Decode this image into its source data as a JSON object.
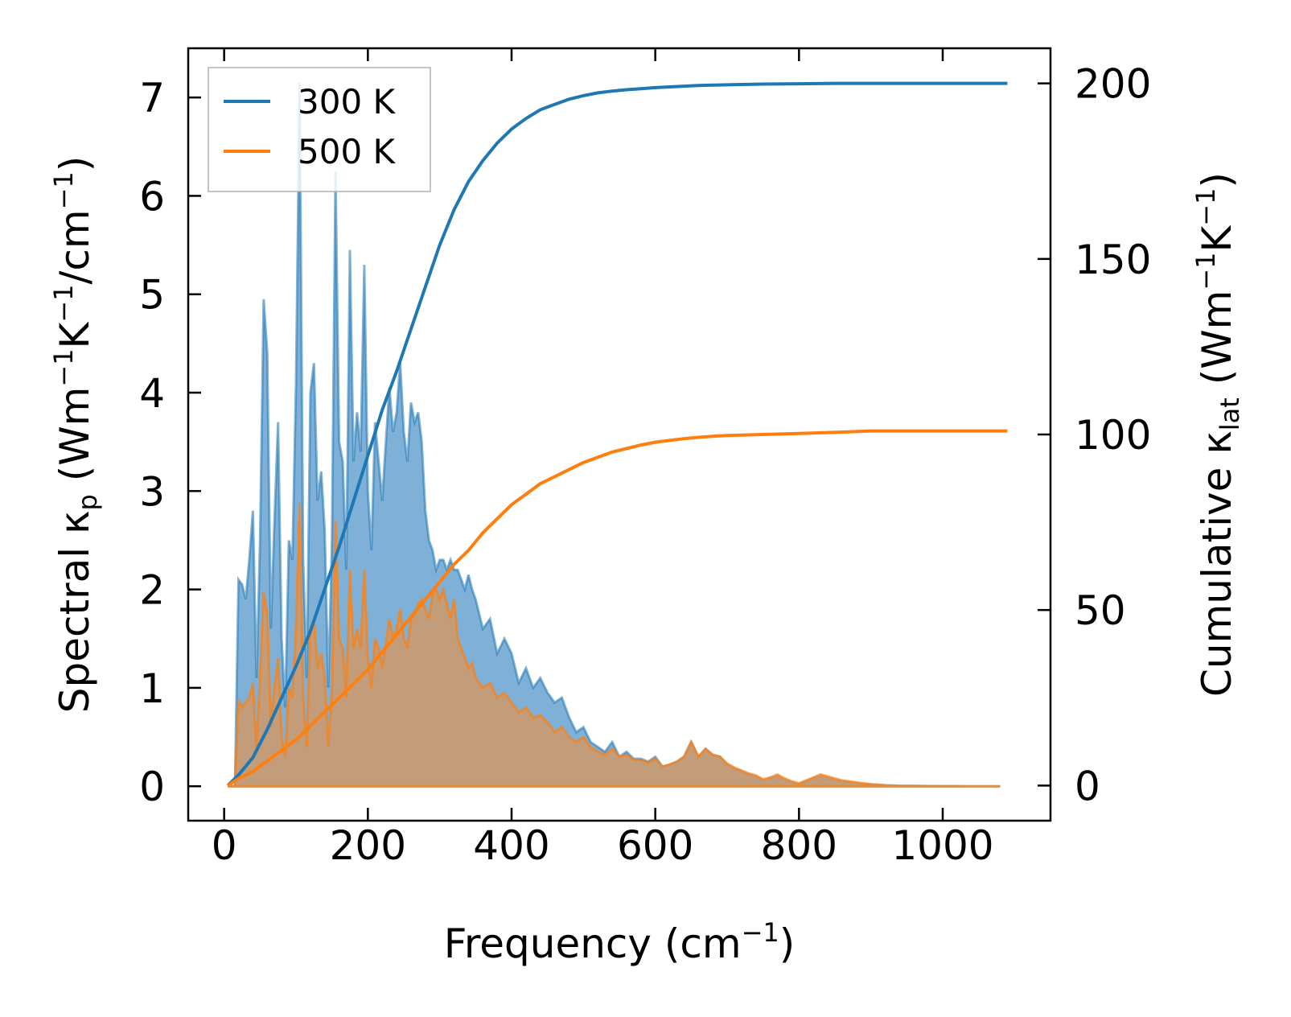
{
  "chart_data": {
    "type": "area",
    "xlabel": {
      "text": "Frequency (cm",
      "sup": "−1",
      "tail": ")"
    },
    "ylabel_left": {
      "pre": "Spectral κ",
      "sub": "p",
      "mid1": " (Wm",
      "sup1": "−1",
      "mid2": "K",
      "sup2": "−1",
      "mid3": "/cm",
      "sup3": "−1",
      "tail": ")"
    },
    "ylabel_right": {
      "pre": "Cumulative κ",
      "sub": "lat",
      "mid1": " (Wm",
      "sup1": "−1",
      "mid2": "K",
      "sup2": "−1",
      "tail": ")"
    },
    "xlim": [
      -50,
      1150
    ],
    "ylim_left": [
      -0.35,
      7.5
    ],
    "ylim_right": [
      -10,
      210
    ],
    "x_ticks": [
      0,
      200,
      400,
      600,
      800,
      1000
    ],
    "y_left_ticks": [
      0,
      1,
      2,
      3,
      4,
      5,
      6,
      7
    ],
    "y_right_ticks": [
      0,
      50,
      100,
      150,
      200
    ],
    "legend": {
      "position": "top-left",
      "entries": [
        "300 K",
        "500 K"
      ]
    },
    "colors": {
      "s300": "#1f77b4",
      "s500": "#ff7f0e",
      "fill300": "#7fb1d8",
      "fill500": "#c99a71"
    },
    "spectral": {
      "x": [
        5,
        10,
        15,
        20,
        25,
        30,
        35,
        40,
        45,
        50,
        55,
        60,
        65,
        70,
        75,
        80,
        85,
        90,
        95,
        100,
        105,
        110,
        115,
        120,
        125,
        130,
        135,
        140,
        145,
        150,
        155,
        160,
        165,
        170,
        175,
        180,
        185,
        190,
        195,
        200,
        205,
        210,
        215,
        220,
        225,
        230,
        235,
        240,
        245,
        250,
        255,
        260,
        265,
        270,
        275,
        280,
        285,
        290,
        295,
        300,
        305,
        310,
        315,
        320,
        325,
        330,
        335,
        340,
        345,
        350,
        360,
        370,
        380,
        390,
        400,
        410,
        420,
        430,
        440,
        450,
        460,
        470,
        480,
        490,
        500,
        510,
        520,
        530,
        540,
        550,
        560,
        570,
        580,
        590,
        600,
        610,
        620,
        630,
        640,
        650,
        660,
        670,
        680,
        690,
        700,
        710,
        720,
        730,
        740,
        750,
        760,
        770,
        780,
        790,
        800,
        810,
        820,
        830,
        840,
        850,
        860,
        870,
        880,
        890,
        900,
        920,
        940,
        960,
        980,
        1000,
        1020,
        1040,
        1060,
        1080
      ],
      "k300": [
        0,
        0,
        0,
        2.1,
        2.05,
        1.9,
        2.3,
        2.8,
        1.1,
        2.5,
        4.95,
        4.4,
        1.6,
        2.7,
        3.7,
        1.5,
        0.8,
        2.5,
        2.3,
        4.1,
        7.15,
        2.3,
        1.1,
        4.0,
        4.3,
        2.9,
        3.2,
        2.6,
        1.0,
        2.5,
        6.25,
        3.5,
        3.3,
        2.2,
        5.45,
        3.3,
        3.8,
        3.4,
        5.3,
        3.0,
        2.4,
        3.7,
        3.3,
        2.9,
        3.5,
        4.05,
        3.6,
        3.8,
        4.3,
        3.6,
        3.3,
        3.9,
        3.7,
        3.8,
        3.5,
        2.8,
        2.5,
        2.4,
        2.2,
        2.3,
        2.3,
        2.2,
        2.3,
        2.2,
        2.2,
        2.1,
        2.0,
        2.15,
        2.0,
        1.9,
        1.6,
        1.7,
        1.35,
        1.5,
        1.35,
        1.05,
        1.2,
        1.0,
        1.1,
        0.95,
        0.85,
        0.9,
        0.7,
        0.55,
        0.6,
        0.45,
        0.4,
        0.35,
        0.45,
        0.3,
        0.35,
        0.28,
        0.28,
        0.25,
        0.3,
        0.2,
        0.22,
        0.25,
        0.3,
        0.45,
        0.3,
        0.38,
        0.32,
        0.3,
        0.22,
        0.18,
        0.15,
        0.12,
        0.1,
        0.06,
        0.08,
        0.1,
        0.06,
        0.04,
        0.02,
        0.05,
        0.08,
        0.1,
        0.08,
        0.06,
        0.05,
        0.04,
        0.03,
        0.02,
        0.02,
        0.01,
        0.005,
        0.003,
        0.002,
        0.001,
        0.001,
        0.0,
        0.0,
        0.0
      ],
      "k500": [
        0,
        0,
        0,
        0.88,
        0.8,
        0.85,
        0.9,
        1.05,
        0.4,
        1.1,
        1.97,
        1.75,
        0.6,
        1.0,
        1.3,
        0.5,
        0.3,
        1.0,
        0.9,
        1.6,
        2.88,
        0.9,
        0.4,
        1.6,
        1.7,
        1.2,
        1.35,
        1.1,
        0.4,
        1.0,
        2.7,
        1.5,
        1.4,
        0.9,
        2.2,
        1.4,
        1.6,
        1.4,
        2.2,
        1.3,
        1.0,
        1.5,
        1.4,
        1.2,
        1.45,
        1.7,
        1.5,
        1.6,
        1.8,
        1.5,
        1.4,
        1.7,
        1.75,
        1.85,
        1.9,
        1.8,
        1.7,
        1.95,
        2.0,
        1.9,
        2.0,
        1.85,
        1.7,
        1.9,
        1.5,
        1.4,
        1.3,
        1.2,
        1.25,
        1.1,
        1.0,
        1.05,
        0.9,
        0.95,
        0.85,
        0.75,
        0.8,
        0.7,
        0.72,
        0.65,
        0.55,
        0.6,
        0.5,
        0.45,
        0.5,
        0.4,
        0.35,
        0.32,
        0.38,
        0.3,
        0.32,
        0.27,
        0.27,
        0.24,
        0.28,
        0.2,
        0.22,
        0.25,
        0.3,
        0.45,
        0.3,
        0.38,
        0.32,
        0.3,
        0.23,
        0.19,
        0.16,
        0.13,
        0.11,
        0.07,
        0.09,
        0.12,
        0.08,
        0.05,
        0.03,
        0.06,
        0.09,
        0.12,
        0.1,
        0.08,
        0.06,
        0.05,
        0.04,
        0.03,
        0.02,
        0.01,
        0.005,
        0.003,
        0.002,
        0.001,
        0.001,
        0.0,
        0.0,
        0.0
      ]
    },
    "cumulative": {
      "x": [
        5,
        20,
        40,
        60,
        80,
        100,
        120,
        140,
        160,
        180,
        200,
        220,
        240,
        260,
        280,
        300,
        320,
        340,
        360,
        380,
        400,
        420,
        440,
        460,
        480,
        500,
        520,
        540,
        560,
        580,
        600,
        620,
        640,
        660,
        680,
        700,
        750,
        800,
        850,
        900,
        950,
        1000,
        1050,
        1090
      ],
      "k300": [
        0,
        3,
        8,
        16,
        25,
        34,
        44,
        56,
        68,
        81,
        94,
        107,
        118,
        130,
        142,
        154,
        164,
        172,
        178,
        183,
        187,
        190,
        192.5,
        194,
        195.5,
        196.5,
        197.3,
        197.8,
        198.2,
        198.5,
        198.8,
        199.0,
        199.2,
        199.4,
        199.5,
        199.6,
        199.8,
        199.9,
        200,
        200,
        200,
        200,
        200,
        200
      ],
      "k500": [
        0,
        2,
        4,
        7,
        10,
        13,
        17,
        21,
        25,
        29,
        33,
        38,
        43,
        48,
        53,
        58,
        63,
        67,
        72,
        76,
        80,
        83,
        86,
        88,
        90,
        92,
        93.5,
        95,
        96,
        97,
        97.8,
        98.3,
        98.8,
        99.2,
        99.5,
        99.7,
        100,
        100.3,
        100.6,
        101,
        101,
        101,
        101,
        101
      ]
    }
  }
}
